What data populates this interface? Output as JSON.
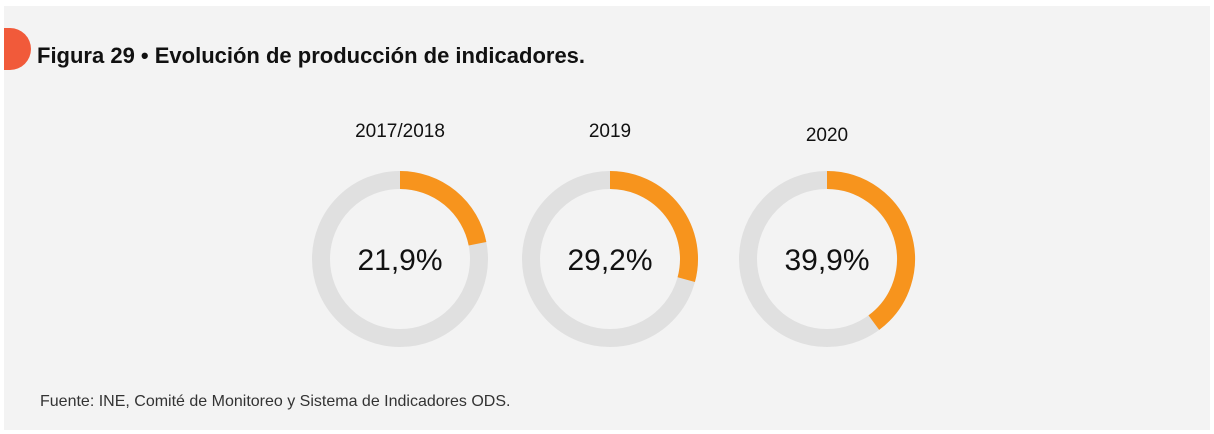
{
  "title": "Figura 29 • Evolución de producción de indicadores.",
  "source": "Fuente: INE, Comité de Monitoreo y Sistema de Indicadores ODS.",
  "chart_data": [
    {
      "type": "donut",
      "title": "2017/2018",
      "values": [
        21.9
      ],
      "value_labels": [
        "21,9%"
      ],
      "ylim": [
        0,
        100
      ],
      "color": "#f7941d",
      "track_color": "#e0e0e0"
    },
    {
      "type": "donut",
      "title": "2019",
      "values": [
        29.2
      ],
      "value_labels": [
        "29,2%"
      ],
      "ylim": [
        0,
        100
      ],
      "color": "#f7941d",
      "track_color": "#e0e0e0"
    },
    {
      "type": "donut",
      "title": "2020",
      "values": [
        39.9
      ],
      "value_labels": [
        "39,9%"
      ],
      "ylim": [
        0,
        100
      ],
      "color": "#f7941d",
      "track_color": "#e0e0e0"
    }
  ]
}
